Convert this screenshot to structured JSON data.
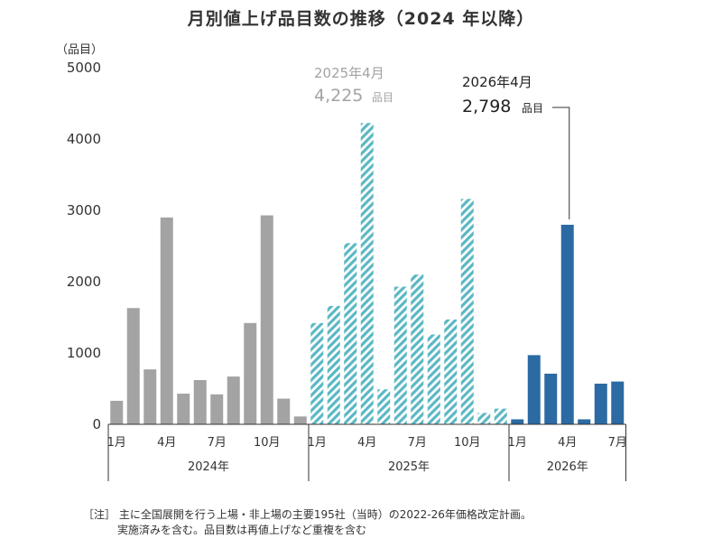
{
  "chart_data": {
    "type": "bar",
    "title": "月別値上げ品目数の推移（2024 年以降）",
    "yunit": "（品目）",
    "ylim": [
      0,
      5000
    ],
    "yticks": [
      0,
      1000,
      2000,
      3000,
      4000,
      5000
    ],
    "xlabel": "",
    "ylabel": "",
    "grid": false,
    "legend": "none",
    "years": [
      {
        "label": "2024年",
        "color": "#a3a3a3",
        "pattern": "solid",
        "months": [
          "1月",
          "2月",
          "3月",
          "4月",
          "5月",
          "6月",
          "7月",
          "8月",
          "9月",
          "10月",
          "11月",
          "12月"
        ],
        "values": [
          330,
          1630,
          770,
          2900,
          430,
          620,
          420,
          670,
          1420,
          2930,
          360,
          110
        ],
        "tick_labels": [
          "1月",
          "",
          "",
          "4月",
          "",
          "",
          "7月",
          "",
          "",
          "10月",
          "",
          ""
        ]
      },
      {
        "label": "2025年",
        "color": "#5bb8c4",
        "pattern": "hatched",
        "months": [
          "1月",
          "2月",
          "3月",
          "4月",
          "5月",
          "6月",
          "7月",
          "8月",
          "9月",
          "10月",
          "11月",
          "12月"
        ],
        "values": [
          1420,
          1660,
          2540,
          4225,
          490,
          1930,
          2100,
          1260,
          1470,
          3160,
          160,
          220
        ],
        "tick_labels": [
          "1月",
          "",
          "",
          "4月",
          "",
          "",
          "7月",
          "",
          "",
          "10月",
          "",
          ""
        ]
      },
      {
        "label": "2026年",
        "color": "#2b6aa3",
        "pattern": "solid",
        "months": [
          "1月",
          "2月",
          "3月",
          "4月",
          "5月",
          "6月",
          "7月"
        ],
        "values": [
          70,
          970,
          710,
          2798,
          70,
          570,
          600
        ],
        "tick_labels": [
          "1月",
          "",
          "",
          "4月",
          "",
          "",
          "7月"
        ]
      }
    ],
    "annotations": [
      {
        "year_index": 1,
        "month_index": 3,
        "line1": "2025年4月",
        "value_text": "4,225",
        "unit_text": "品目",
        "color": "#a3a3a3"
      },
      {
        "year_index": 2,
        "month_index": 3,
        "line1": "2026年4月",
        "value_text": "2,798",
        "unit_text": "品目",
        "color": "#222222"
      }
    ]
  },
  "note": {
    "line1": "［注］ 主に全国展開を行う上場・非上場の主要195社（当時）の2022-26年価格改定計画。",
    "line2": "実施済みを含む。品目数は再値上げなど重複を含む"
  }
}
